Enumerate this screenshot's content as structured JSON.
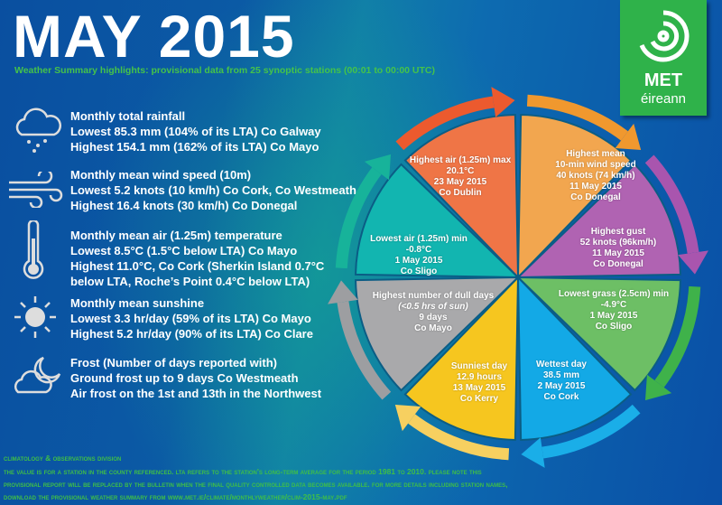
{
  "header": {
    "title": "MAY 2015",
    "subtitle": "Weather Summary highlights: provisional data from 25 synoptic stations (00:01 to 00:00 UTC)"
  },
  "logo": {
    "line1": "MET",
    "line2": "éireann"
  },
  "summary": [
    {
      "icon": "rain-cloud-icon",
      "lines": [
        "Monthly total rainfall",
        "Lowest 85.3 mm (104% of its LTA) Co Galway",
        "Highest 154.1 mm (162% of its LTA) Co Mayo"
      ]
    },
    {
      "icon": "wind-icon",
      "lines": [
        "Monthly mean wind speed (10m)",
        "Lowest 5.2 knots (10 km/h) Co Cork, Co Westmeath",
        "Highest 16.4 knots (30 km/h) Co Donegal"
      ]
    },
    {
      "icon": "thermometer-icon",
      "lines": [
        "Monthly mean air (1.25m) temperature",
        "Lowest 8.5°C (1.5°C below LTA) Co Mayo",
        "Highest 11.0°C, Co Cork (Sherkin Island 0.7°C",
        "below LTA,  Roche’s Point 0.4°C below LTA)"
      ]
    },
    {
      "icon": "sun-icon",
      "lines": [
        "Monthly mean sunshine",
        "Lowest 3.3 hr/day (59% of its LTA) Co Mayo",
        "Highest 5.2 hr/day (90% of its LTA) Co Clare"
      ]
    },
    {
      "icon": "frost-moon-icon",
      "lines": [
        "Frost (Number of days reported with)",
        "Ground frost up to 9 days Co Westmeath",
        "Air frost on the 1st and 13th in the Northwest"
      ]
    }
  ],
  "wheel": [
    {
      "color": "#f2a64f",
      "arrow": "#f0982e",
      "lines": [
        "Highest mean",
        "10-min wind speed",
        "40 knots (74 km/h)",
        "11 May 2015",
        "Co Donegal"
      ]
    },
    {
      "color": "#b063b2",
      "arrow": "#a955ae",
      "lines": [
        "Highest gust",
        "52 knots (96km/h)",
        "11 May 2015",
        "Co Donegal"
      ]
    },
    {
      "color": "#6dbf65",
      "arrow": "#3fb24a",
      "lines": [
        "Lowest grass (2.5cm) min",
        "-4.9°C",
        "1 May 2015",
        "Co Sligo"
      ]
    },
    {
      "color": "#13a9e6",
      "arrow": "#1aaee8",
      "lines": [
        "Wettest day",
        "38.5 mm",
        "2 May 2015",
        "Co Cork"
      ]
    },
    {
      "color": "#f6c61f",
      "arrow": "#f7d060",
      "lines": [
        "Sunniest day",
        "12.9 hours",
        "13 May 2015",
        "Co Kerry"
      ]
    },
    {
      "color": "#a9a9ab",
      "arrow": "#9d9ea1",
      "lines": [
        "Highest number of dull days",
        "(<0.5 hrs of sun)",
        "9 days",
        "Co Mayo"
      ]
    },
    {
      "color": "#12b5b0",
      "arrow": "#17b39a",
      "lines": [
        "Lowest air (1.25m) min",
        "-0.8°C",
        "1 May 2015",
        "Co Sligo"
      ]
    },
    {
      "color": "#ef7546",
      "arrow": "#ec5a2e",
      "lines": [
        "Highest air (1.25m) max",
        "20.1°C",
        "23 May 2015",
        "Co Dublin"
      ]
    }
  ],
  "footer": {
    "l1": "Climatology & Observations Division",
    "l2": "The value is for a station in the county referenced. LTA refers to the station's long-term average for the period 1981 to 2010. Please note this",
    "l3": "provisional report will be replaced by the bulletin when the final quality controlled data becomes available. For more details including station names,",
    "l4": "download the provisional weather summary from www.met.ie/climate/MonthlyWeather/clim-2015-may.pdf"
  }
}
